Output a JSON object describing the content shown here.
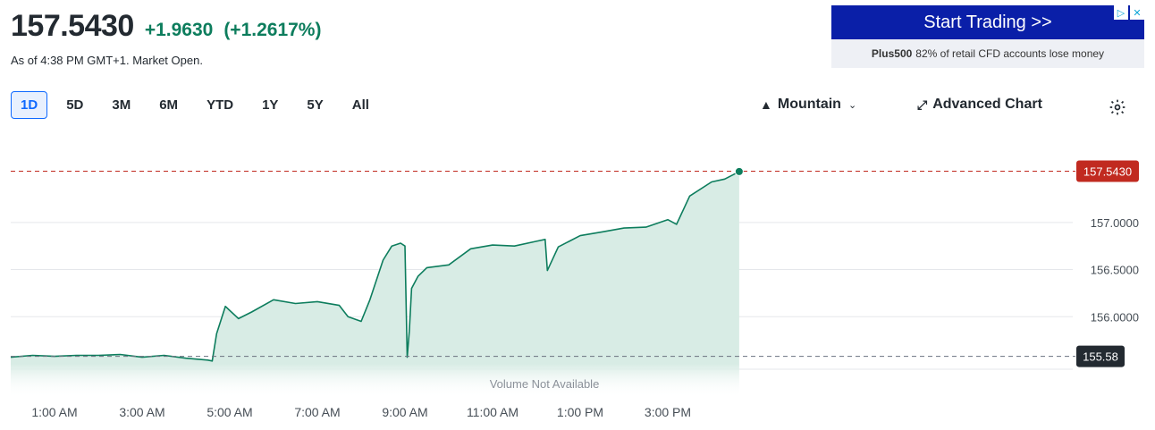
{
  "quote": {
    "price": "157.5430",
    "change": "+1.9630",
    "change_pct": "(+1.2617%)",
    "as_of": "As of 4:38 PM GMT+1. Market Open."
  },
  "ad": {
    "headline": "Start Trading >>",
    "brand": "Plus500",
    "disclaimer": "82% of retail CFD accounts lose money",
    "info_icon": "▷",
    "close_icon": "✕"
  },
  "ranges": [
    "1D",
    "5D",
    "3M",
    "6M",
    "YTD",
    "1Y",
    "5Y",
    "All"
  ],
  "active_range": "1D",
  "toolbar": {
    "chart_type": "Mountain",
    "advanced_label": "Advanced Chart"
  },
  "chart_data": {
    "type": "area",
    "ylim": [
      155.5,
      157.7
    ],
    "y_ticks": [
      "157.0000",
      "156.5000",
      "156.0000"
    ],
    "x_tick_labels": [
      "1:00 AM",
      "3:00 AM",
      "5:00 AM",
      "7:00 AM",
      "9:00 AM",
      "11:00 AM",
      "1:00 PM",
      "3:00 PM"
    ],
    "x_tick_hours": [
      1,
      3,
      5,
      7,
      9,
      11,
      13,
      15
    ],
    "x_start_hour": 0,
    "x_end_hour": 16.63,
    "current_price": 157.543,
    "current_label": "157.5430",
    "previous_close": 155.58,
    "previous_close_label": "155.58",
    "volume_note": "Volume Not Available",
    "colors": {
      "line": "#0d7d5d",
      "fill": "#d8ece5",
      "current": "#c12a20",
      "prev": "#232a31"
    },
    "series": [
      {
        "x": [
          0,
          0.5,
          1,
          1.5,
          2,
          2.5,
          3,
          3.5,
          4,
          4.5,
          4.6,
          4.7,
          4.9,
          5.2,
          5.5,
          6,
          6.5,
          7,
          7.5,
          7.7,
          8,
          8.2,
          8.5,
          8.7,
          8.9,
          9.0,
          9.05,
          9.1,
          9.15,
          9.3,
          9.5,
          10,
          10.5,
          11,
          11.5,
          12,
          12.2,
          12.25,
          12.5,
          13,
          13.5,
          14,
          14.5,
          15,
          15.2,
          15.5,
          16,
          16.3,
          16.63
        ],
        "y": [
          155.57,
          155.59,
          155.58,
          155.59,
          155.59,
          155.6,
          155.57,
          155.59,
          155.56,
          155.54,
          155.53,
          155.82,
          156.11,
          155.98,
          156.05,
          156.18,
          156.14,
          156.16,
          156.12,
          156.0,
          155.95,
          156.18,
          156.6,
          156.75,
          156.78,
          156.75,
          155.57,
          155.85,
          156.3,
          156.43,
          156.52,
          156.55,
          156.72,
          156.76,
          156.75,
          156.8,
          156.82,
          156.49,
          156.74,
          156.86,
          156.9,
          156.94,
          156.95,
          157.03,
          156.98,
          157.28,
          157.43,
          157.46,
          157.54
        ]
      }
    ]
  }
}
